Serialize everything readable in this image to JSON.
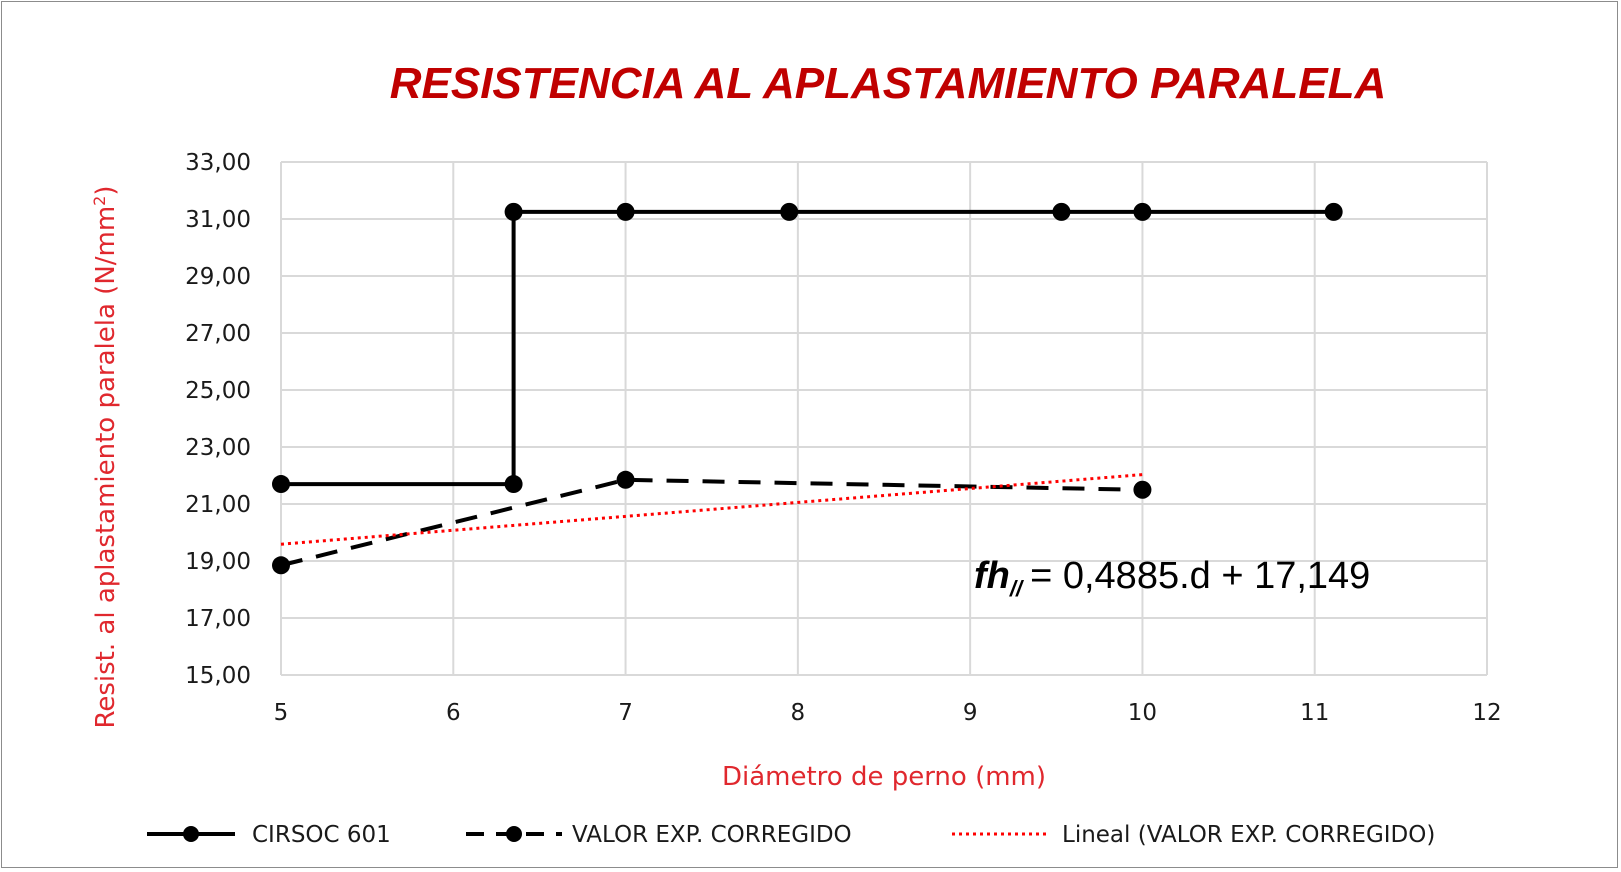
{
  "chart_data": {
    "type": "line",
    "title": "RESISTENCIA AL APLASTAMIENTO PARALELA",
    "xlabel": "Diámetro de perno (mm)",
    "ylabel": "Resist. al aplastamiento paralela (N/mm",
    "ylabel_sup": "2",
    "ylabel_end": ")",
    "xlim": [
      5,
      12
    ],
    "ylim": [
      15,
      33
    ],
    "x_ticks": [
      5,
      6,
      7,
      8,
      9,
      10,
      11,
      12
    ],
    "x_tick_labels": [
      "5",
      "6",
      "7",
      "8",
      "9",
      "10",
      "11",
      "12"
    ],
    "y_ticks": [
      15,
      17,
      19,
      21,
      23,
      25,
      27,
      29,
      31,
      33
    ],
    "y_tick_labels": [
      "15,00",
      "17,00",
      "19,00",
      "21,00",
      "23,00",
      "25,00",
      "27,00",
      "29,00",
      "31,00",
      "33,00"
    ],
    "grid": true,
    "legend_position": "bottom",
    "colors": {
      "title": "#c00000",
      "axis_title": "#e0282e",
      "grid": "#d9d9d9",
      "cirsoc": "#000000",
      "exp": "#000000",
      "trend": "#ff0000"
    },
    "series": [
      {
        "name": "CIRSOC 601",
        "style": "solid-markers",
        "points": [
          [
            5,
            21.7
          ],
          [
            6.35,
            21.7
          ],
          [
            6.35,
            31.25
          ],
          [
            7,
            31.25
          ],
          [
            7.95,
            31.25
          ],
          [
            9.53,
            31.25
          ],
          [
            10,
            31.25
          ],
          [
            11.11,
            31.25
          ]
        ],
        "markers": [
          [
            5,
            21.7
          ],
          [
            6.35,
            21.7
          ],
          [
            6.35,
            31.25
          ],
          [
            7,
            31.25
          ],
          [
            7.95,
            31.25
          ],
          [
            9.53,
            31.25
          ],
          [
            10,
            31.25
          ],
          [
            11.11,
            31.25
          ]
        ]
      },
      {
        "name": "VALOR EXP. CORREGIDO",
        "style": "dashed-markers",
        "points": [
          [
            5,
            18.85
          ],
          [
            7,
            21.85
          ],
          [
            10,
            21.5
          ]
        ],
        "markers": [
          [
            5,
            18.85
          ],
          [
            7,
            21.85
          ],
          [
            10,
            21.5
          ]
        ]
      },
      {
        "name": "Lineal (VALOR EXP. CORREGIDO)",
        "style": "dotted",
        "points": [
          [
            5,
            19.59
          ],
          [
            10,
            22.03
          ]
        ],
        "markers": []
      }
    ],
    "annotation": {
      "var": "fh",
      "sub": "//",
      "rest": "= 0,4885.d + 17,149"
    }
  }
}
